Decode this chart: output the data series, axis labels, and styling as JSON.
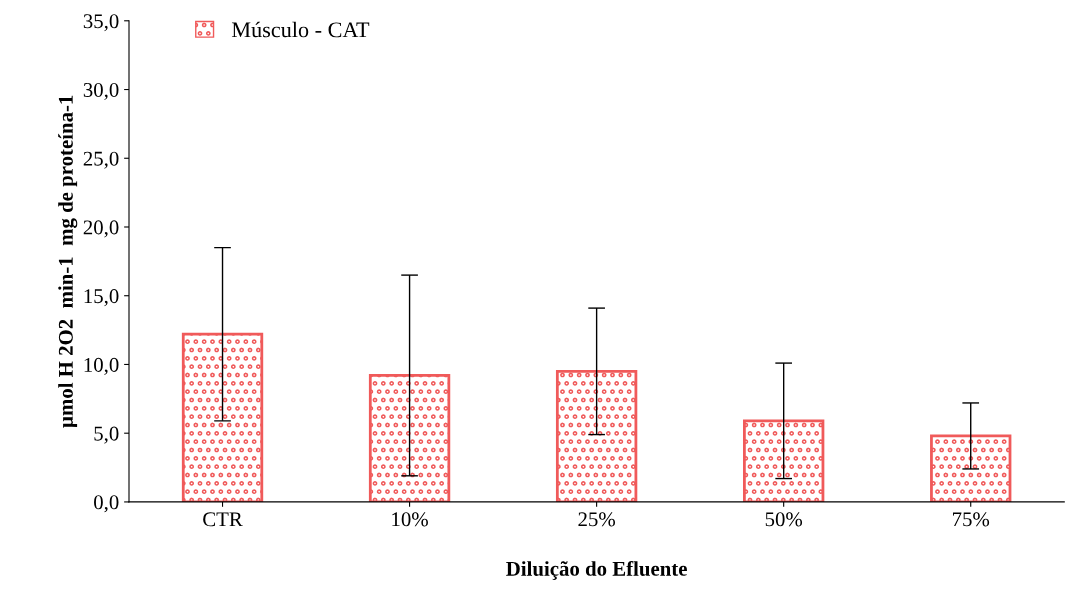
{
  "chart_data": {
    "type": "bar",
    "xlabel": "Diluição do Efluente",
    "ylabel": "µmol H 2O2  min-1  mg de proteína-1",
    "categories": [
      "CTR",
      "10%",
      "25%",
      "50%",
      "75%"
    ],
    "series": [
      {
        "name": "Músculo - CAT",
        "color": "#f05a5a",
        "values": [
          12.2,
          9.2,
          9.5,
          5.9,
          4.8
        ],
        "errors": [
          6.3,
          7.3,
          4.6,
          4.2,
          2.4
        ]
      }
    ],
    "ylim": [
      0,
      35
    ],
    "yticks": [
      {
        "value": 0,
        "label": "0,0"
      },
      {
        "value": 5,
        "label": "5,0"
      },
      {
        "value": 10,
        "label": "10,0"
      },
      {
        "value": 15,
        "label": "15,0"
      },
      {
        "value": 20,
        "label": "20,0"
      },
      {
        "value": 25,
        "label": "25,0"
      },
      {
        "value": 30,
        "label": "30,0"
      },
      {
        "value": 35,
        "label": "35,0"
      }
    ],
    "grid": false,
    "legend": "top left"
  }
}
